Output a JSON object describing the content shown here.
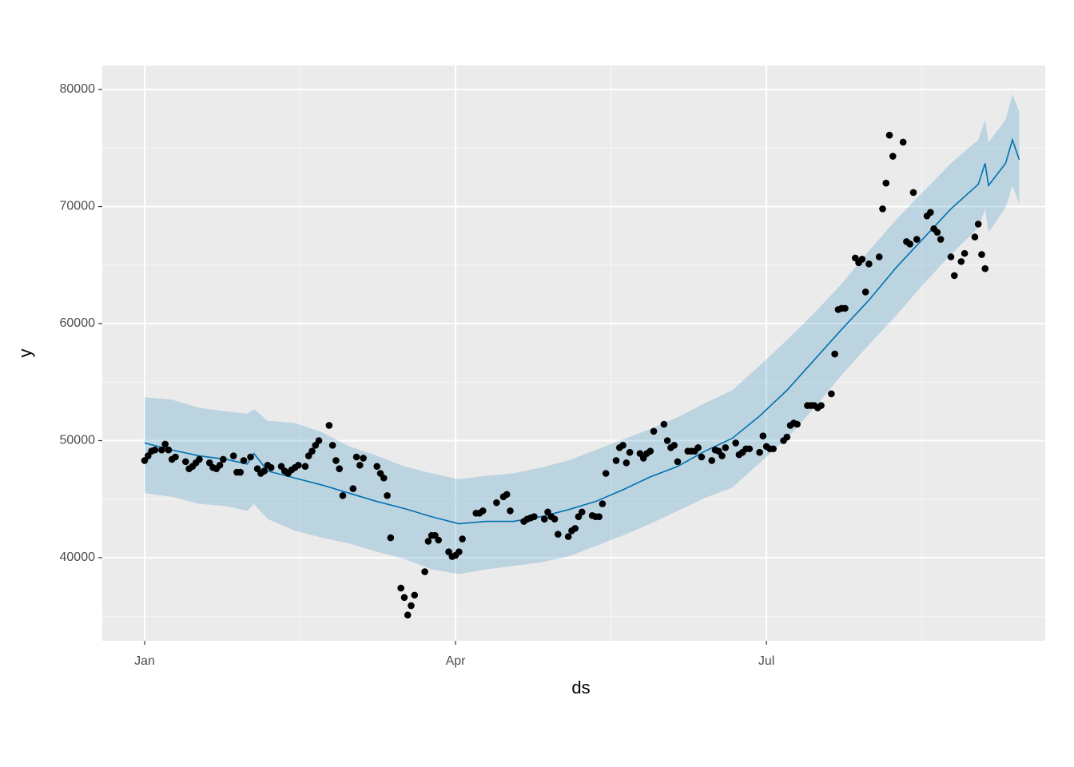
{
  "chart_data": {
    "type": "forecast",
    "xlabel": "ds",
    "ylabel": "y",
    "xlim": [
      -12.4,
      263.6
    ],
    "xticks": [
      {
        "value": 0,
        "label": "Jan"
      },
      {
        "value": 91,
        "label": "Apr"
      },
      {
        "value": 182,
        "label": "Jul"
      }
    ],
    "ylim": [
      32900,
      82050
    ],
    "yticks": [
      40000,
      50000,
      60000,
      70000,
      80000
    ],
    "grid": true,
    "observed": {
      "color": "#000000",
      "x": [
        0,
        1,
        2,
        3,
        5,
        6,
        7,
        8,
        9,
        12,
        13,
        14,
        15,
        16,
        19,
        20,
        21,
        22,
        23,
        26,
        27,
        28,
        29,
        31,
        33,
        34,
        35,
        36,
        37,
        40,
        41,
        42,
        43,
        44,
        45,
        47,
        48,
        49,
        50,
        51,
        54,
        55,
        56,
        57,
        58,
        61,
        62,
        63,
        64,
        68,
        69,
        70,
        71,
        72,
        75,
        76,
        77,
        78,
        79,
        82,
        83,
        84,
        85,
        86,
        89,
        90,
        91,
        92,
        93,
        97,
        98,
        99,
        103,
        105,
        106,
        107,
        111,
        112,
        113,
        114,
        117,
        118,
        119,
        120,
        121,
        124,
        125,
        126,
        127,
        128,
        131,
        132,
        133,
        134,
        135,
        138,
        139,
        140,
        141,
        142,
        145,
        146,
        147,
        148,
        149,
        152,
        153,
        154,
        155,
        156,
        159,
        160,
        161,
        162,
        163,
        166,
        167,
        168,
        169,
        170,
        173,
        174,
        175,
        176,
        177,
        180,
        181,
        182,
        183,
        184,
        187,
        188,
        189,
        190,
        191,
        194,
        195,
        196,
        197,
        198,
        201,
        202,
        203,
        204,
        205,
        208,
        209,
        210,
        211,
        212,
        215,
        216,
        217,
        218,
        219,
        222,
        223,
        224,
        225,
        226,
        229,
        230,
        231,
        232,
        233,
        236,
        237,
        239,
        240,
        243,
        244,
        245,
        246
      ],
      "values": [
        48300,
        48700,
        49100,
        49200,
        49200,
        49700,
        49200,
        48400,
        48600,
        48200,
        47600,
        47800,
        48100,
        48400,
        48100,
        47700,
        47600,
        47900,
        48400,
        48700,
        47300,
        47300,
        48300,
        48600,
        47600,
        47200,
        47400,
        47900,
        47700,
        47800,
        47400,
        47200,
        47500,
        47700,
        47900,
        47800,
        48700,
        49100,
        49600,
        50000,
        51300,
        49600,
        48300,
        47600,
        45300,
        45900,
        48600,
        47900,
        48500,
        47800,
        47200,
        46800,
        45300,
        41700,
        37400,
        36600,
        35100,
        35900,
        36800,
        38800,
        41400,
        41900,
        41900,
        41500,
        40500,
        40100,
        40200,
        40500,
        41600,
        43800,
        43800,
        44000,
        44700,
        45200,
        45400,
        44000,
        43100,
        43300,
        43400,
        43500,
        43300,
        43900,
        43500,
        43300,
        42000,
        41800,
        42300,
        42500,
        43500,
        43900,
        43600,
        43500,
        43500,
        44600,
        47200,
        48300,
        49400,
        49600,
        48100,
        49000,
        48900,
        48500,
        48900,
        49100,
        50800,
        51400,
        50000,
        49400,
        49600,
        48200,
        49100,
        49100,
        49100,
        49400,
        48600,
        48300,
        49200,
        49100,
        48700,
        49400,
        49800,
        48800,
        49000,
        49300,
        49300,
        49000,
        50400,
        49500,
        49300,
        49300,
        50000,
        50300,
        51300,
        51500,
        51400,
        53000,
        53000,
        53000,
        52800,
        53000,
        54000,
        57400,
        61200,
        61300,
        61300,
        65600,
        65200,
        65500,
        62700,
        65100,
        65700,
        69800,
        72000,
        76100,
        74300,
        75500,
        67000,
        66800,
        71200,
        67200,
        69200,
        69500,
        68100,
        67800,
        67200,
        65700,
        64100,
        65300,
        66000,
        67400,
        68500,
        65900,
        64700
      ]
    },
    "forecast": {
      "color": "#0072B2",
      "x": [
        0,
        8,
        16,
        24,
        30,
        32,
        36,
        44,
        52,
        60,
        68,
        76,
        84,
        92,
        100,
        108,
        116,
        124,
        132,
        140,
        148,
        156,
        164,
        172,
        180,
        188,
        196,
        204,
        212,
        220,
        228,
        236,
        244,
        246,
        247,
        252,
        254,
        256
      ],
      "values": [
        49800,
        49200,
        48700,
        48400,
        48000,
        48900,
        47400,
        46800,
        46200,
        45500,
        44800,
        44200,
        43500,
        42900,
        43100,
        43100,
        43500,
        44100,
        44800,
        45800,
        46900,
        47800,
        49100,
        50200,
        52100,
        54300,
        56900,
        59500,
        62000,
        64800,
        67300,
        69800,
        71900,
        73700,
        71800,
        73700,
        75700,
        74000
      ],
      "upper": [
        53700,
        53500,
        52800,
        52500,
        52300,
        52700,
        51700,
        51500,
        50700,
        49500,
        48700,
        47800,
        47200,
        46700,
        47000,
        47200,
        47700,
        48300,
        49200,
        50100,
        51000,
        52000,
        53200,
        54300,
        56400,
        58600,
        60900,
        63400,
        66200,
        68900,
        71300,
        73700,
        75700,
        77400,
        75500,
        77400,
        79600,
        78100
      ],
      "lower": [
        45500,
        45200,
        44600,
        44400,
        44000,
        44600,
        43300,
        42300,
        41700,
        41200,
        40500,
        39900,
        39000,
        38600,
        39000,
        39300,
        39600,
        40100,
        41000,
        41900,
        42900,
        44000,
        45100,
        46000,
        48100,
        50200,
        52800,
        55600,
        58200,
        60700,
        63400,
        65900,
        68200,
        69800,
        67800,
        69900,
        71800,
        70200
      ]
    }
  }
}
